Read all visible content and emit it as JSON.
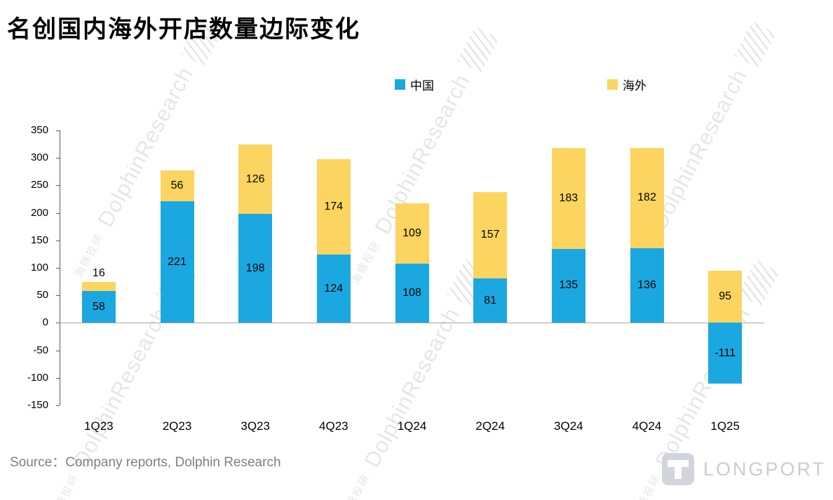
{
  "title": "名创国内海外开店数量边际变化",
  "source": "Source：Company reports, Dolphin Research",
  "watermark": {
    "cn": "海豚投研",
    "en": "DolphinResearch"
  },
  "brand": {
    "name": "LONGPORT"
  },
  "chart_data": {
    "type": "bar",
    "stacked": true,
    "title": "名创国内海外开店数量边际变化",
    "categories": [
      "1Q23",
      "2Q23",
      "3Q23",
      "4Q23",
      "1Q24",
      "2Q24",
      "3Q24",
      "4Q24",
      "1Q25"
    ],
    "series": [
      {
        "name": "中国",
        "color": "#1BA8E0",
        "values": [
          58,
          221,
          198,
          124,
          108,
          81,
          135,
          136,
          -111
        ]
      },
      {
        "name": "海外",
        "color": "#FBD55F",
        "values": [
          16,
          56,
          126,
          174,
          109,
          157,
          183,
          182,
          95
        ]
      }
    ],
    "xlabel": "",
    "ylabel": "",
    "ylim": [
      -150,
      350
    ],
    "ytick_step": 50,
    "grid": false,
    "legend_position": "top"
  }
}
